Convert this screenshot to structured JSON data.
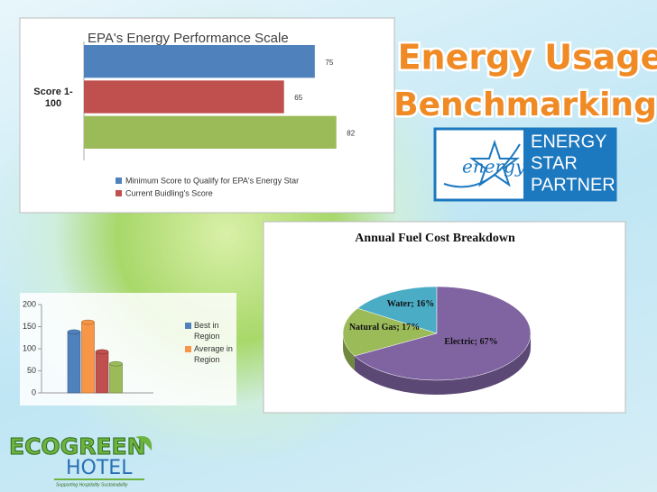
{
  "slide": {
    "title": [
      "Energy Usage",
      "Benchmarking"
    ],
    "energy_star": {
      "script": "energy",
      "lines": [
        "ENERGY",
        "STAR",
        "PARTNER"
      ]
    },
    "logo": {
      "eco": "ECOGREEN",
      "hotel": "HOTEL",
      "tagline": "Supporting Hospitality Sustainability"
    }
  },
  "chart_data": [
    {
      "type": "bar",
      "orientation": "horizontal",
      "title": "EPA's Energy Performance Scale",
      "y_label": "Score 1-100",
      "series": [
        {
          "name": "Minimum Score to Qualify for EPA's Energy Star",
          "color": "#4f81bd",
          "values": [
            75
          ]
        },
        {
          "name": "Current Buidling's Score",
          "color": "#c0504d",
          "values": [
            65
          ]
        },
        {
          "color": "#9bbb59",
          "values": [
            82
          ]
        }
      ],
      "xlim": [
        0,
        90
      ]
    },
    {
      "type": "bar",
      "orientation": "vertical",
      "series": [
        {
          "name": "Best in Region",
          "color": "#4f81bd",
          "values": [
            138
          ]
        },
        {
          "name": "Average in Region",
          "color": "#f79646",
          "values": [
            160
          ]
        },
        {
          "color": "#c0504d",
          "values": [
            93
          ]
        },
        {
          "color": "#9bbb59",
          "values": [
            66
          ]
        }
      ],
      "ylim": [
        0,
        200
      ],
      "yticks": [
        0,
        50,
        100,
        150,
        200
      ]
    },
    {
      "type": "pie",
      "title": "Annual Fuel Cost Breakdown",
      "values": [
        16,
        17,
        67
      ],
      "value_labels": [
        "Water; 16%",
        "Natural Gas; 17%",
        "Electric; 67%"
      ],
      "colors": [
        "#4bacc6",
        "#9bbb59",
        "#8064a2"
      ]
    }
  ]
}
